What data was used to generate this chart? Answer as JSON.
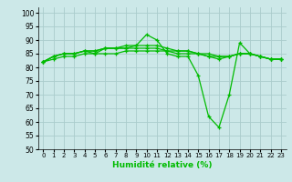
{
  "xlabel": "Humidité relative (%)",
  "background_color": "#cce8e8",
  "grid_color": "#aacccc",
  "line_color": "#00bb00",
  "ylim": [
    50,
    102
  ],
  "xlim": [
    -0.5,
    23.5
  ],
  "yticks": [
    50,
    55,
    60,
    65,
    70,
    75,
    80,
    85,
    90,
    95,
    100
  ],
  "xticks": [
    0,
    1,
    2,
    3,
    4,
    5,
    6,
    7,
    8,
    9,
    10,
    11,
    12,
    13,
    14,
    15,
    16,
    17,
    18,
    19,
    20,
    21,
    22,
    23
  ],
  "series": [
    [
      82,
      84,
      85,
      85,
      86,
      85,
      87,
      87,
      88,
      88,
      92,
      90,
      85,
      84,
      84,
      77,
      62,
      58,
      70,
      89,
      85,
      84,
      83,
      83
    ],
    [
      82,
      84,
      85,
      85,
      86,
      86,
      87,
      87,
      87,
      88,
      88,
      88,
      87,
      86,
      86,
      85,
      84,
      83,
      84,
      85,
      85,
      84,
      83,
      83
    ],
    [
      82,
      84,
      85,
      85,
      86,
      86,
      87,
      87,
      87,
      87,
      87,
      87,
      86,
      86,
      86,
      85,
      85,
      84,
      84,
      85,
      85,
      84,
      83,
      83
    ],
    [
      82,
      83,
      84,
      84,
      85,
      85,
      85,
      85,
      86,
      86,
      86,
      86,
      86,
      85,
      85,
      85,
      84,
      84,
      84,
      85,
      85,
      84,
      83,
      83
    ]
  ]
}
